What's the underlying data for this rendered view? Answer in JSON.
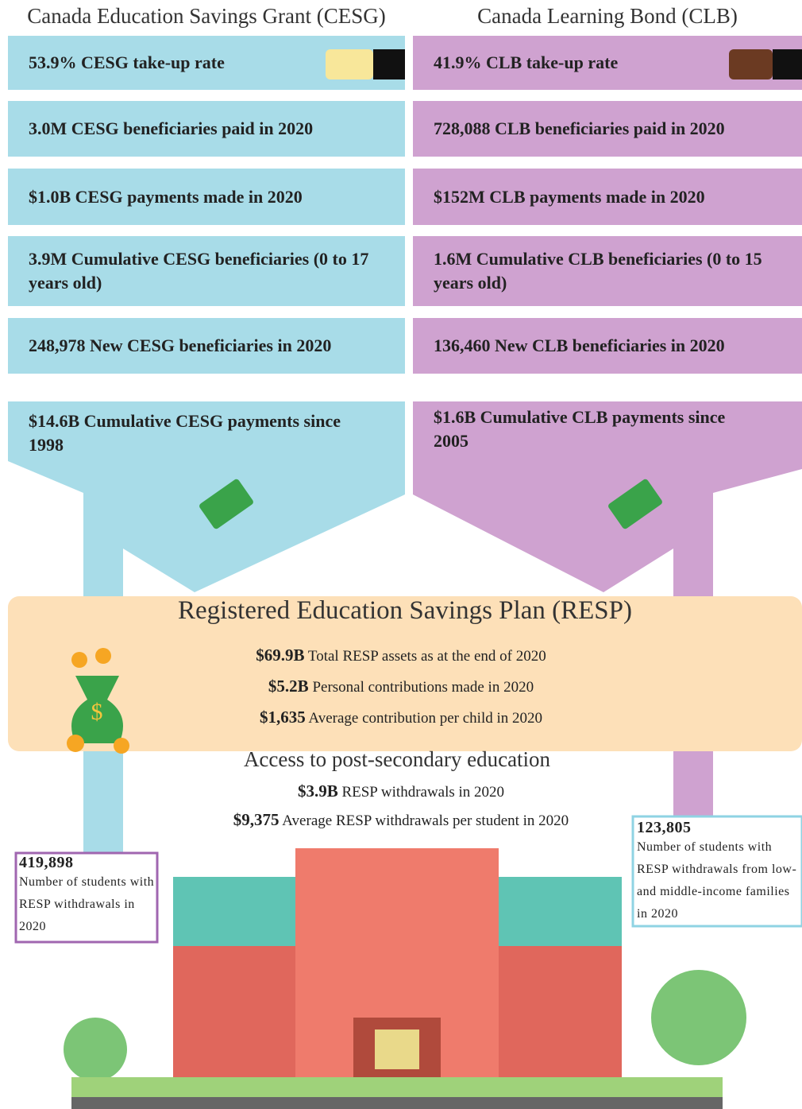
{
  "cesg": {
    "title": "Canada Education Savings Grant (CESG)",
    "items": [
      "53.9% CESG take-up rate",
      "3.0M CESG beneficiaries paid in 2020",
      "$1.0B CESG payments made in 2020",
      "3.9M Cumulative CESG beneficiaries (0 to 17 years old)",
      "248,978 New CESG beneficiaries in 2020"
    ],
    "cumulative": "$14.6B Cumulative CESG payments since 1998"
  },
  "clb": {
    "title": "Canada Learning Bond (CLB)",
    "items": [
      "41.9% CLB take-up rate",
      "728,088 CLB beneficiaries paid in 2020",
      "$152M CLB payments made in 2020",
      "1.6M Cumulative CLB beneficiaries (0 to 15 years old)",
      "136,460 New CLB beneficiaries in 2020"
    ],
    "cumulative": "$1.6B Cumulative CLB payments since 2005"
  },
  "resp": {
    "title": "Registered Education Savings Plan (RESP)",
    "items": [
      {
        "amount": "$69.9B",
        "text": "Total RESP assets as at the end of 2020"
      },
      {
        "amount": "$5.2B",
        "text": "Personal contributions made in 2020"
      },
      {
        "amount": "$1,635",
        "text": "Average contribution per child in 2020"
      }
    ]
  },
  "access": {
    "title": "Access to post-secondary education",
    "items": [
      {
        "amount": "$3.9B",
        "text": "RESP withdrawals in 2020"
      },
      {
        "amount": "$9,375",
        "text": "Average RESP withdrawals per student in 2020"
      }
    ]
  },
  "callouts": [
    {
      "amount": "419,898",
      "text": "Number of students with RESP withdrawals in 2020"
    },
    {
      "amount": "123,805",
      "text": "Number of students with RESP withdrawals from low-and middle-income families in 2020"
    }
  ]
}
